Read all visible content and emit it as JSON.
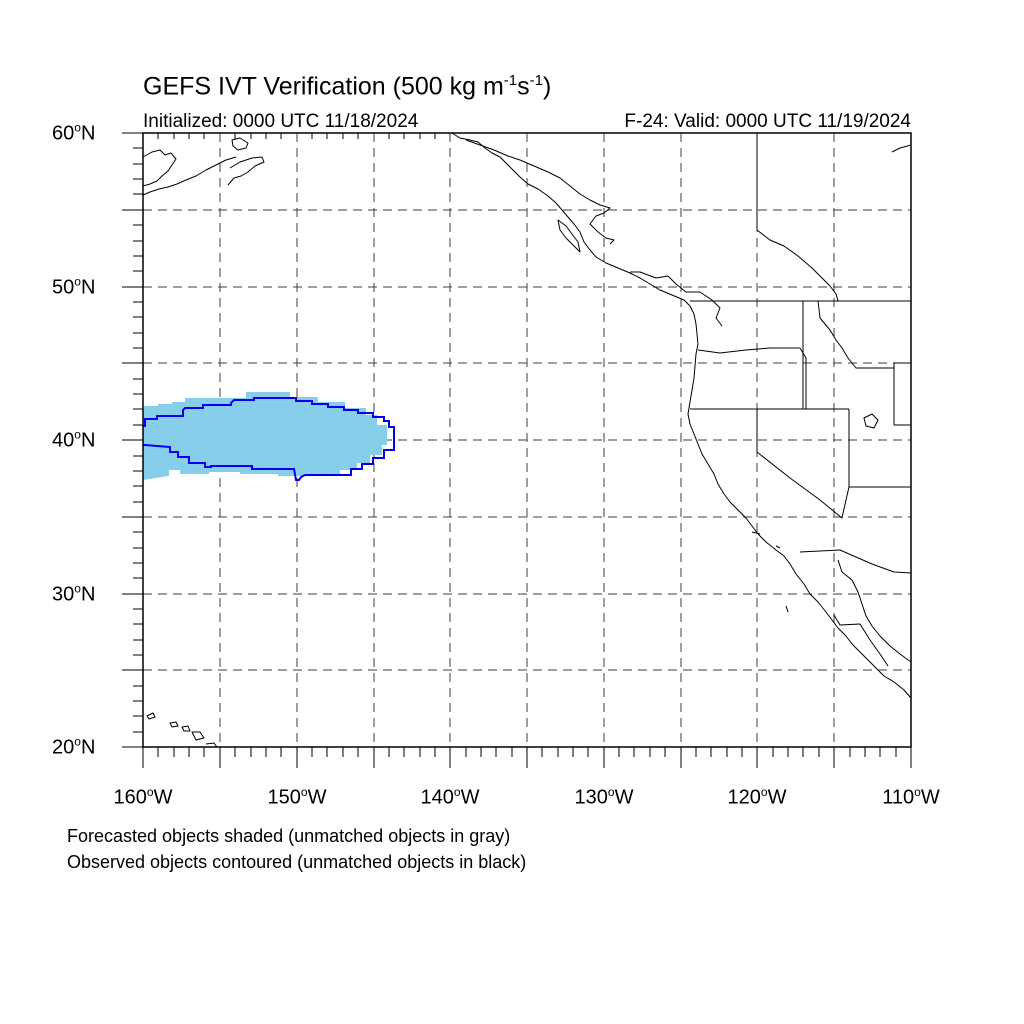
{
  "title": {
    "main": "GEFS IVT Verification (500 kg m",
    "exp1": "-1",
    "mid": "s",
    "exp2": "-1",
    "end": ")"
  },
  "subtitle_left": "Initialized: 0000 UTC 11/18/2024",
  "subtitle_right": "F-24: Valid: 0000 UTC 11/19/2024",
  "lat_labels": [
    {
      "value": "60",
      "hemi": "N"
    },
    {
      "value": "50",
      "hemi": "N"
    },
    {
      "value": "40",
      "hemi": "N"
    },
    {
      "value": "30",
      "hemi": "N"
    },
    {
      "value": "20",
      "hemi": "N"
    }
  ],
  "lon_labels": [
    {
      "value": "160",
      "hemi": "W"
    },
    {
      "value": "150",
      "hemi": "W"
    },
    {
      "value": "140",
      "hemi": "W"
    },
    {
      "value": "130",
      "hemi": "W"
    },
    {
      "value": "120",
      "hemi": "W"
    },
    {
      "value": "110",
      "hemi": "W"
    }
  ],
  "footnote_1": "Forecasted objects shaded (unmatched objects in gray)",
  "footnote_2": "Observed objects contoured (unmatched objects in black)",
  "colors": {
    "forecast_fill": "#87ceeb",
    "observed_contour": "#0000ee",
    "grid": "#000000",
    "coastline": "#000000"
  }
}
